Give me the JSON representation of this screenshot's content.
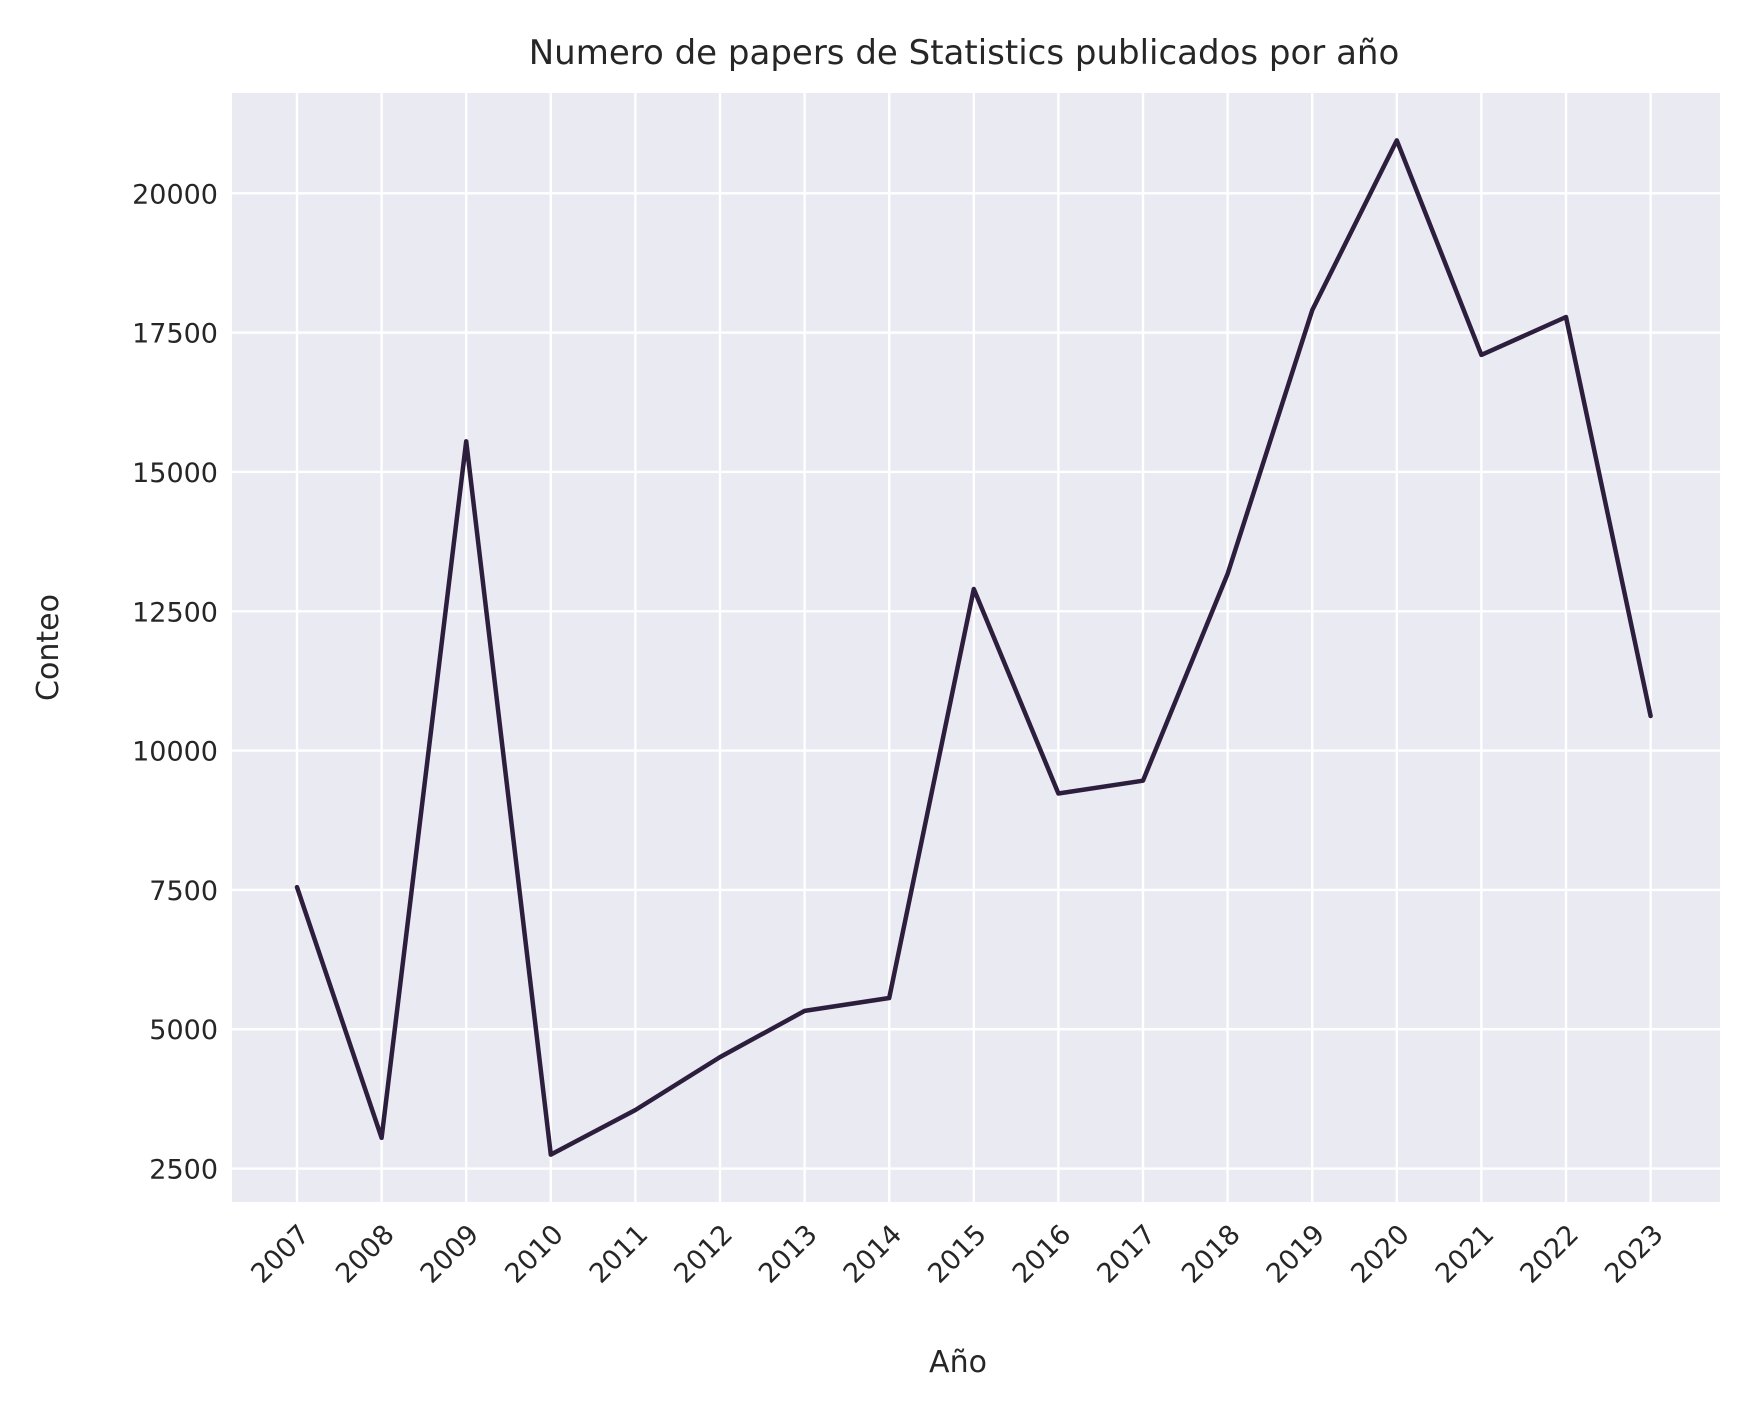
{
  "chart_data": {
    "type": "line",
    "title": "Numero de papers de Statistics publicados por año",
    "xlabel": "Año",
    "ylabel": "Conteo",
    "categories": [
      "2007",
      "2008",
      "2009",
      "2010",
      "2011",
      "2012",
      "2013",
      "2014",
      "2015",
      "2016",
      "2017",
      "2018",
      "2019",
      "2020",
      "2021",
      "2022",
      "2023"
    ],
    "series": [
      {
        "values": [
          7550,
          3050,
          15550,
          2750,
          3550,
          4500,
          5330,
          5560,
          12900,
          9230,
          9460,
          13170,
          17900,
          20950,
          17100,
          17780,
          10620
        ],
        "color": "#2d1e3e"
      }
    ],
    "yticks": [
      2500,
      5000,
      7500,
      10000,
      12500,
      15000,
      17500,
      20000
    ],
    "ylim": [
      1900,
      21800
    ],
    "grid": true,
    "rotated_xtick_labels_deg": -45,
    "background_color": "#eaeaf2",
    "grid_color": "#ffffff"
  }
}
